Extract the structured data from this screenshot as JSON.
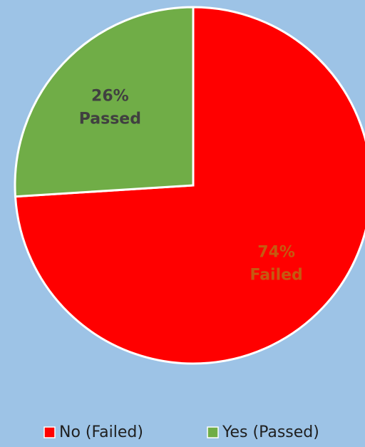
{
  "chart_data": {
    "type": "pie",
    "categories": [
      "No (Failed)",
      "Yes (Passed)"
    ],
    "values": [
      74,
      26
    ],
    "value_labels": [
      "74%",
      "26%"
    ],
    "slice_labels": [
      "Failed",
      "Passed"
    ],
    "colors": [
      "#ff0000",
      "#70ad47"
    ],
    "label_colors": [
      "#c55a11",
      "#404040"
    ],
    "start_angle": 0,
    "direction": "clockwise",
    "legend": "bottom"
  }
}
